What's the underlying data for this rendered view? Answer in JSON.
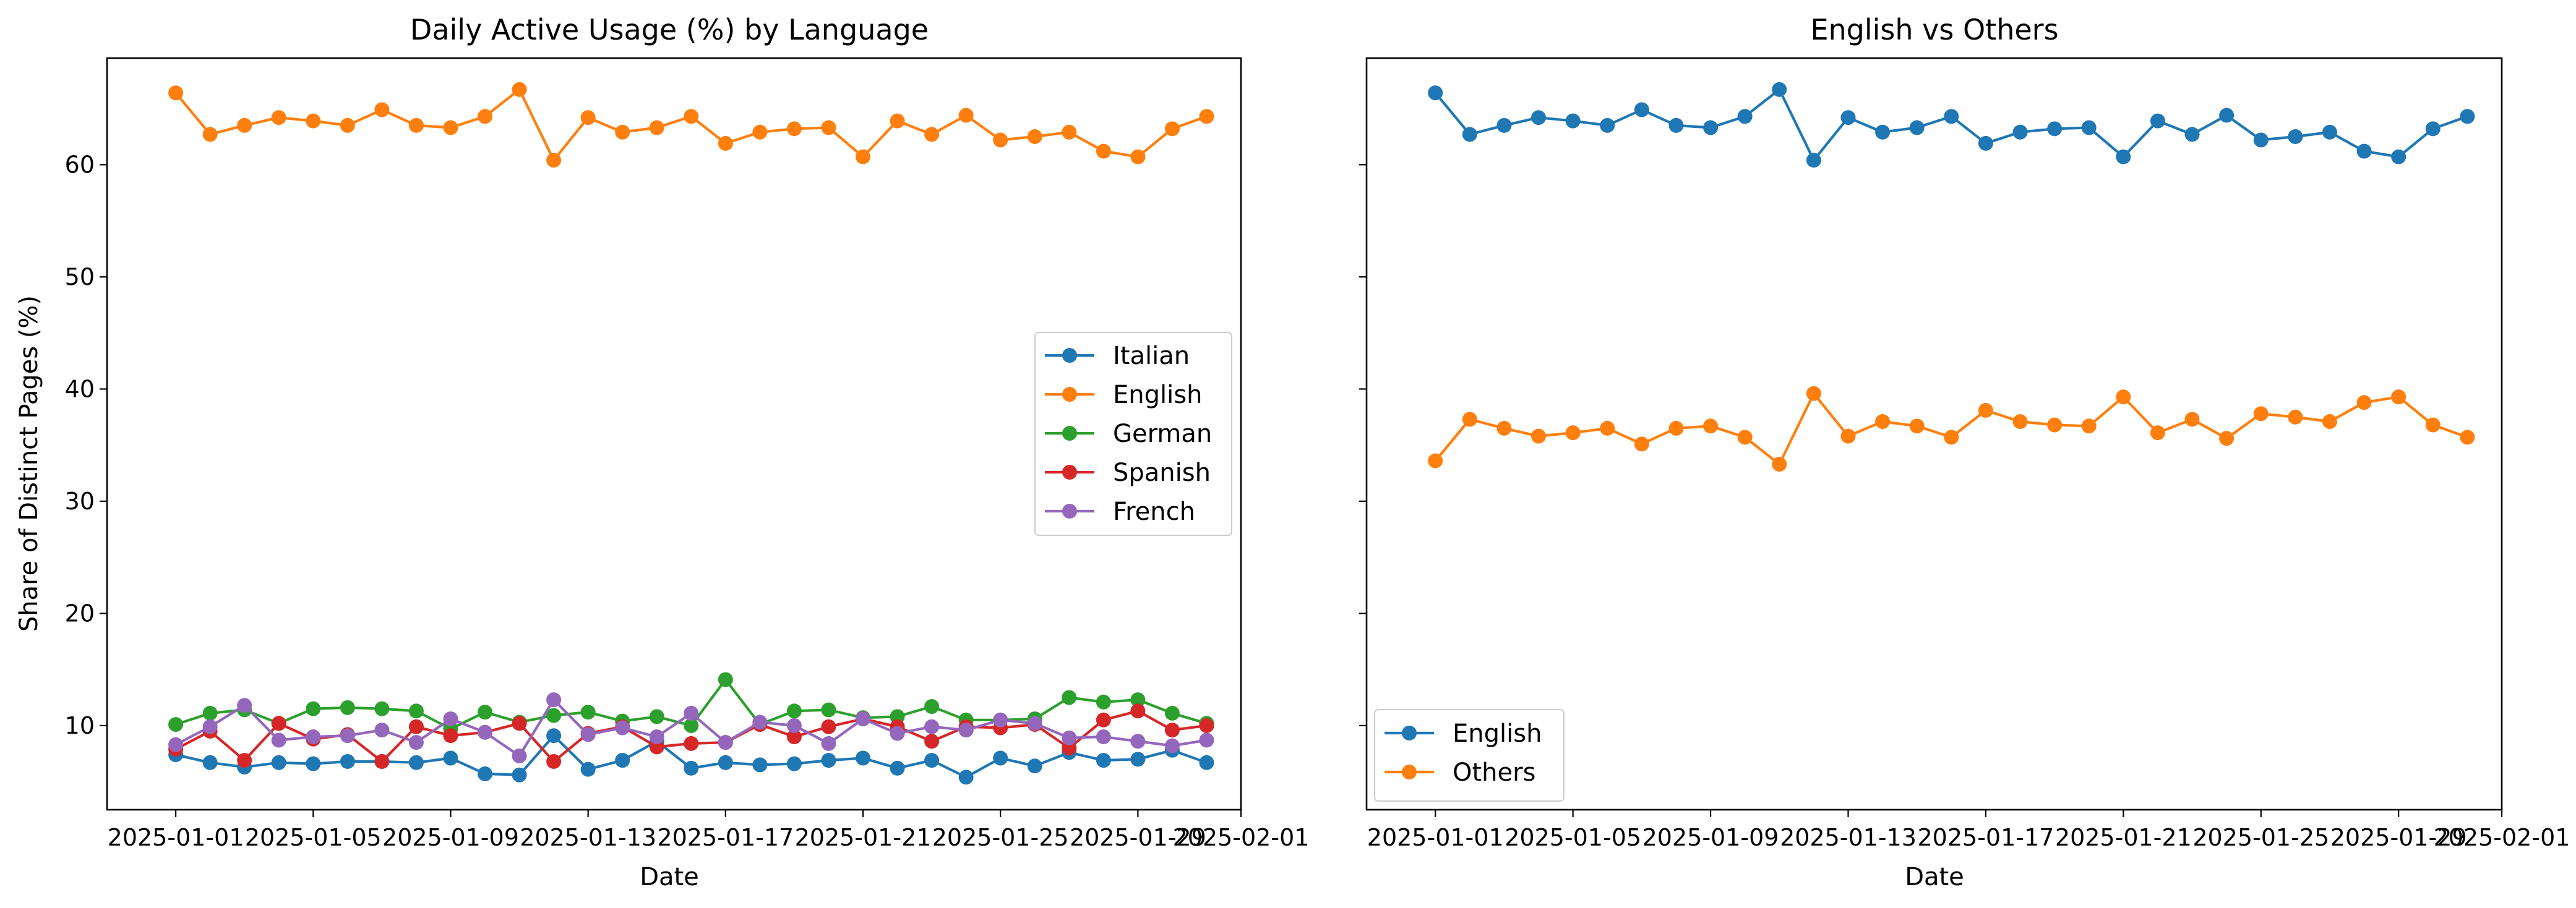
{
  "chart_data": [
    {
      "type": "line",
      "title": "Daily Active Usage (%) by Language",
      "xlabel": "Date",
      "ylabel": "Share of Distinct Pages (%)",
      "x": [
        "2025-01-01",
        "2025-01-02",
        "2025-01-03",
        "2025-01-04",
        "2025-01-05",
        "2025-01-06",
        "2025-01-07",
        "2025-01-08",
        "2025-01-09",
        "2025-01-10",
        "2025-01-11",
        "2025-01-12",
        "2025-01-13",
        "2025-01-14",
        "2025-01-15",
        "2025-01-16",
        "2025-01-17",
        "2025-01-18",
        "2025-01-19",
        "2025-01-20",
        "2025-01-21",
        "2025-01-22",
        "2025-01-23",
        "2025-01-24",
        "2025-01-25",
        "2025-01-26",
        "2025-01-27",
        "2025-01-28",
        "2025-01-29",
        "2025-01-30",
        "2025-01-31"
      ],
      "xticks": [
        "2025-01-01",
        "2025-01-05",
        "2025-01-09",
        "2025-01-13",
        "2025-01-17",
        "2025-01-21",
        "2025-01-25",
        "2025-01-29",
        "2025-02-01"
      ],
      "xlim": [
        "2024-12-30",
        "2025-02-01"
      ],
      "yticks": [
        10,
        20,
        30,
        40,
        50,
        60
      ],
      "ylim": [
        2.5,
        69.5
      ],
      "grid": false,
      "legend_position": "center-right",
      "series": [
        {
          "name": "Italian",
          "color": "#1f77b4",
          "values": [
            7.4,
            6.7,
            6.3,
            6.7,
            6.6,
            6.8,
            6.8,
            6.7,
            7.1,
            5.7,
            5.6,
            9.1,
            6.1,
            6.9,
            8.6,
            6.2,
            6.7,
            6.5,
            6.6,
            6.9,
            7.1,
            6.2,
            6.9,
            5.4,
            7.1,
            6.4,
            7.6,
            6.9,
            7.0,
            7.8,
            6.7
          ]
        },
        {
          "name": "English",
          "color": "#ff7f0e",
          "values": [
            66.4,
            62.7,
            63.5,
            64.2,
            63.9,
            63.5,
            64.9,
            63.5,
            63.3,
            64.3,
            66.7,
            60.4,
            64.2,
            62.9,
            63.3,
            64.3,
            61.9,
            62.9,
            63.2,
            63.3,
            60.7,
            63.9,
            62.7,
            64.4,
            62.2,
            62.5,
            62.9,
            61.2,
            60.7,
            63.2,
            64.3
          ]
        },
        {
          "name": "German",
          "color": "#2ca02c",
          "values": [
            10.1,
            11.1,
            11.4,
            10.2,
            11.5,
            11.6,
            11.5,
            11.3,
            9.7,
            11.2,
            10.3,
            10.9,
            11.2,
            10.4,
            10.8,
            10.0,
            14.1,
            10.1,
            11.3,
            11.4,
            10.7,
            10.8,
            11.7,
            10.5,
            10.5,
            10.6,
            12.5,
            12.1,
            12.3,
            11.1,
            10.2
          ]
        },
        {
          "name": "Spanish",
          "color": "#d62728",
          "values": [
            7.9,
            9.5,
            6.9,
            10.2,
            8.8,
            9.2,
            6.8,
            9.9,
            9.1,
            9.4,
            10.2,
            6.8,
            9.3,
            9.9,
            8.1,
            8.4,
            8.5,
            10.1,
            9.0,
            9.9,
            10.6,
            9.9,
            8.6,
            9.9,
            9.8,
            10.1,
            8.0,
            10.5,
            11.3,
            9.6,
            10.0
          ]
        },
        {
          "name": "French",
          "color": "#9467bd",
          "values": [
            8.3,
            9.9,
            11.8,
            8.7,
            9.0,
            9.1,
            9.6,
            8.5,
            10.6,
            9.4,
            7.3,
            12.3,
            9.2,
            9.8,
            9.0,
            11.1,
            8.5,
            10.3,
            10.0,
            8.4,
            10.6,
            9.3,
            9.9,
            9.6,
            10.5,
            10.2,
            8.9,
            9.0,
            8.6,
            8.2,
            8.7
          ]
        }
      ]
    },
    {
      "type": "line",
      "title": "English vs Others",
      "xlabel": "Date",
      "ylabel": "",
      "x": [
        "2025-01-01",
        "2025-01-02",
        "2025-01-03",
        "2025-01-04",
        "2025-01-05",
        "2025-01-06",
        "2025-01-07",
        "2025-01-08",
        "2025-01-09",
        "2025-01-10",
        "2025-01-11",
        "2025-01-12",
        "2025-01-13",
        "2025-01-14",
        "2025-01-15",
        "2025-01-16",
        "2025-01-17",
        "2025-01-18",
        "2025-01-19",
        "2025-01-20",
        "2025-01-21",
        "2025-01-22",
        "2025-01-23",
        "2025-01-24",
        "2025-01-25",
        "2025-01-26",
        "2025-01-27",
        "2025-01-28",
        "2025-01-29",
        "2025-01-30",
        "2025-01-31"
      ],
      "xticks": [
        "2025-01-01",
        "2025-01-05",
        "2025-01-09",
        "2025-01-13",
        "2025-01-17",
        "2025-01-21",
        "2025-01-25",
        "2025-01-29",
        "2025-02-01"
      ],
      "xlim": [
        "2024-12-30",
        "2025-02-01"
      ],
      "ylim": [
        2.5,
        69.5
      ],
      "shared_y": true,
      "grid": false,
      "legend_position": "lower-left",
      "series": [
        {
          "name": "English",
          "color": "#1f77b4",
          "values": [
            66.4,
            62.7,
            63.5,
            64.2,
            63.9,
            63.5,
            64.9,
            63.5,
            63.3,
            64.3,
            66.7,
            60.4,
            64.2,
            62.9,
            63.3,
            64.3,
            61.9,
            62.9,
            63.2,
            63.3,
            60.7,
            63.9,
            62.7,
            64.4,
            62.2,
            62.5,
            62.9,
            61.2,
            60.7,
            63.2,
            64.3
          ]
        },
        {
          "name": "Others",
          "color": "#ff7f0e",
          "values": [
            33.6,
            37.3,
            36.5,
            35.8,
            36.1,
            36.5,
            35.1,
            36.5,
            36.7,
            35.7,
            33.3,
            39.6,
            35.8,
            37.1,
            36.7,
            35.7,
            38.1,
            37.1,
            36.8,
            36.7,
            39.3,
            36.1,
            37.3,
            35.6,
            37.8,
            37.5,
            37.1,
            38.8,
            39.3,
            36.8,
            35.7
          ]
        }
      ]
    }
  ]
}
